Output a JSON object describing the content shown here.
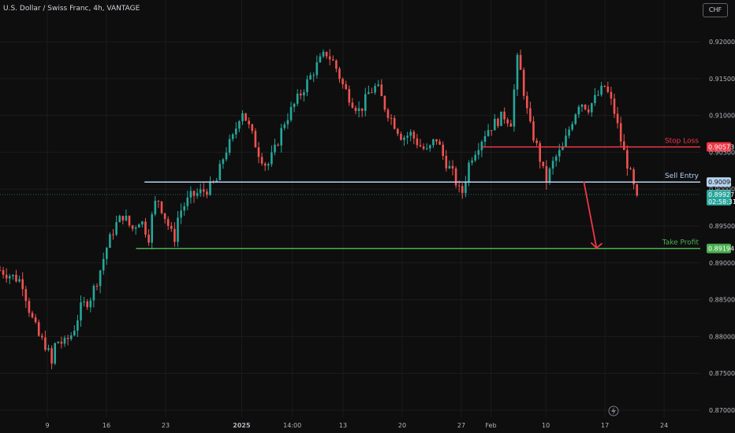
{
  "header": {
    "symbol_title": "U.S. Dollar / Swiss Franc, 4h, VANTAGE",
    "currency_button": "CHF"
  },
  "colors": {
    "background": "#0e0e0e",
    "bull": "#26a69a",
    "bear": "#ef5350",
    "stop_loss": "#f23645",
    "sell_entry": "#b7d3f0",
    "take_profit": "#4caf50",
    "arrow": "#f23645",
    "grid": "#1c1c1c"
  },
  "chart_data": {
    "type": "candlestick",
    "y_axis": {
      "min": 0.87,
      "max": 0.921,
      "ticks": [
        "0.92000",
        "0.91500",
        "0.91000",
        "0.90500",
        "0.90000",
        "0.89500",
        "0.89000",
        "0.88500",
        "0.88000",
        "0.87500",
        "0.87000"
      ],
      "tick_values": [
        0.92,
        0.915,
        0.91,
        0.905,
        0.9,
        0.895,
        0.89,
        0.885,
        0.88,
        0.875,
        0.87
      ]
    },
    "x_axis": {
      "ticks": [
        "9",
        "16",
        "23",
        "2025",
        "14:00",
        "13",
        "20",
        "27",
        "Feb",
        "10",
        "17",
        "24"
      ],
      "tick_days": [
        0,
        7,
        14,
        23,
        29,
        35,
        42,
        49,
        52.5,
        59,
        66,
        73
      ]
    },
    "levels": [
      {
        "name": "Stop Loss",
        "value": 0.90573,
        "value_label": "0.90573",
        "start_day": 51.5
      },
      {
        "name": "Sell Entry",
        "value": 0.90096,
        "value_label": "0.90096",
        "start_day": 11.5
      },
      {
        "name": "Take Profit",
        "value": 0.89194,
        "value_label": "0.89194",
        "start_day": 10.5
      }
    ],
    "current_price": {
      "value": 0.89927,
      "label": "0.89927",
      "countdown": "02:58:31"
    },
    "arrow": {
      "from_day": 63.5,
      "from_value": 0.901,
      "to_day": 65.0,
      "to_value": 0.892
    },
    "candles_path": [
      [
        -5.6,
        0.889
      ],
      [
        -3,
        0.8875
      ],
      [
        -2,
        0.883
      ],
      [
        -1,
        0.88
      ],
      [
        0,
        0.8785
      ],
      [
        0.5,
        0.876
      ],
      [
        1,
        0.8795
      ],
      [
        2,
        0.879
      ],
      [
        3,
        0.8805
      ],
      [
        4,
        0.884
      ],
      [
        5,
        0.885
      ],
      [
        6,
        0.888
      ],
      [
        7,
        0.892
      ],
      [
        8,
        0.895
      ],
      [
        9,
        0.8965
      ],
      [
        10,
        0.8945
      ],
      [
        11,
        0.896
      ],
      [
        12,
        0.8935
      ],
      [
        12.5,
        0.897
      ],
      [
        13,
        0.899
      ],
      [
        14,
        0.896
      ],
      [
        15,
        0.893
      ],
      [
        15.5,
        0.8965
      ],
      [
        16,
        0.8975
      ],
      [
        17,
        0.899
      ],
      [
        18,
        0.8995
      ],
      [
        19,
        0.9
      ],
      [
        20,
        0.901
      ],
      [
        21,
        0.905
      ],
      [
        22,
        0.907
      ],
      [
        23,
        0.911
      ],
      [
        24,
        0.908
      ],
      [
        25,
        0.905
      ],
      [
        26,
        0.903
      ],
      [
        27,
        0.9055
      ],
      [
        28,
        0.909
      ],
      [
        29,
        0.911
      ],
      [
        30,
        0.913
      ],
      [
        31,
        0.915
      ],
      [
        32,
        0.917
      ],
      [
        33,
        0.9185
      ],
      [
        34,
        0.917
      ],
      [
        35,
        0.914
      ],
      [
        36,
        0.912
      ],
      [
        37,
        0.9105
      ],
      [
        38,
        0.913
      ],
      [
        39,
        0.914
      ],
      [
        40,
        0.911
      ],
      [
        41,
        0.909
      ],
      [
        42,
        0.907
      ],
      [
        43,
        0.9075
      ],
      [
        44,
        0.906
      ],
      [
        45,
        0.905
      ],
      [
        46,
        0.907
      ],
      [
        47,
        0.904
      ],
      [
        48,
        0.902
      ],
      [
        49,
        0.899
      ],
      [
        50,
        0.904
      ],
      [
        51,
        0.906
      ],
      [
        52,
        0.908
      ],
      [
        53,
        0.909
      ],
      [
        54,
        0.91
      ],
      [
        55,
        0.909
      ],
      [
        55.5,
        0.918
      ],
      [
        56,
        0.916
      ],
      [
        57,
        0.909
      ],
      [
        58,
        0.9055
      ],
      [
        59,
        0.901
      ],
      [
        60,
        0.904
      ],
      [
        61,
        0.9055
      ],
      [
        62,
        0.909
      ],
      [
        63,
        0.912
      ],
      [
        64,
        0.911
      ],
      [
        65,
        0.9125
      ],
      [
        66,
        0.914
      ],
      [
        67,
        0.911
      ],
      [
        68,
        0.906
      ],
      [
        69,
        0.902
      ],
      [
        70,
        0.8975
      ]
    ]
  }
}
